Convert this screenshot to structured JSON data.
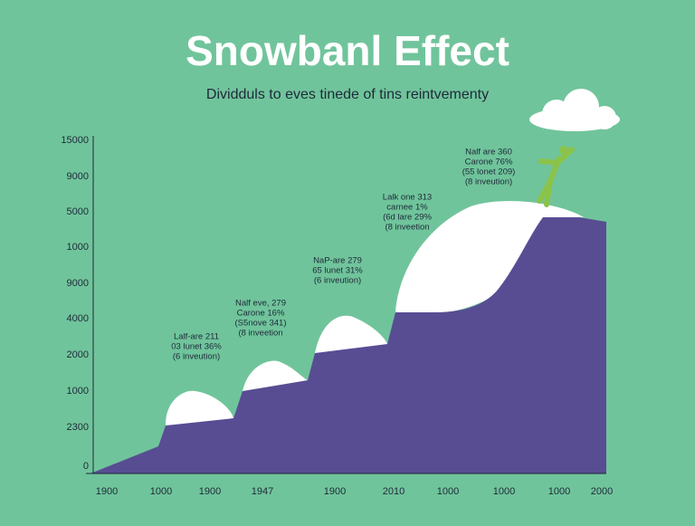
{
  "title": "Snowbanl Effect",
  "subtitle": "Dividduls to eves tinede of tins reintvementy",
  "y_axis_labels": [
    15000,
    9000,
    5000,
    1000,
    9000,
    4000,
    2000,
    1000,
    2300,
    0
  ],
  "x_axis_labels": [
    1900,
    1000,
    1900,
    1947,
    1900,
    2010,
    1000,
    1000,
    1000,
    2000
  ],
  "annotations": [
    {
      "lines": [
        "Lalf-are 211",
        "03 lunet 36%",
        "(6 inveution)"
      ]
    },
    {
      "lines": [
        "Nalf eve, 279",
        "Carone 16%",
        "(S5nove 341)",
        "(8 inveetion"
      ]
    },
    {
      "lines": [
        "NaP-are 279",
        "65 lunet 31%",
        "(6 inveution)"
      ]
    },
    {
      "lines": [
        "Lalk one 313",
        "carnee 1%",
        "(6d lare 29%",
        "(8 inveetion"
      ]
    },
    {
      "lines": [
        "Nalf are 360",
        "Carone 76%",
        "(55 lonet 209)",
        "(8 inveution)"
      ]
    }
  ]
}
